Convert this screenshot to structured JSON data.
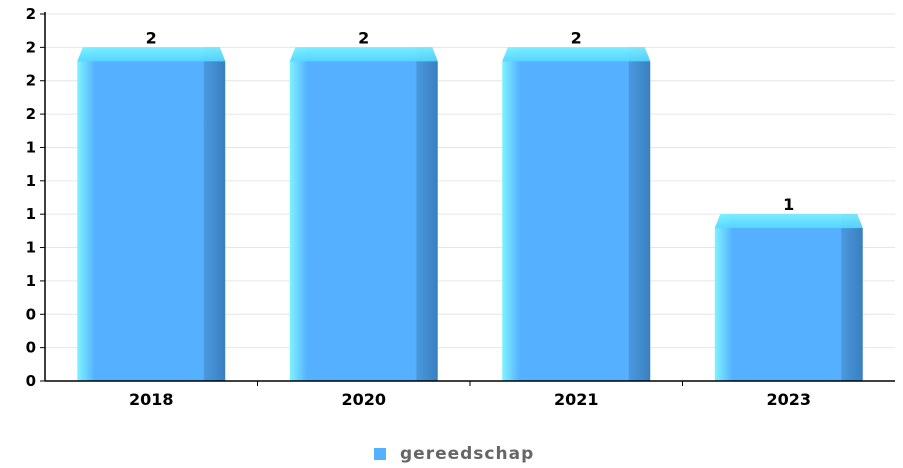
{
  "chart_data": {
    "type": "bar",
    "categories": [
      "2018",
      "2020",
      "2021",
      "2023"
    ],
    "series": [
      {
        "name": "gereedschap",
        "values": [
          2,
          2,
          2,
          1
        ]
      }
    ],
    "data_labels": [
      "2",
      "2",
      "2",
      "1"
    ],
    "y_tick_labels": [
      "0",
      "0",
      "0",
      "1",
      "1",
      "1",
      "1",
      "1",
      "2",
      "2",
      "2",
      "2"
    ],
    "ylim": [
      0,
      2.2
    ],
    "grid": true,
    "legend_position": "bottom-center",
    "colors": {
      "bar_face": "#55b0ff",
      "bar_highlight": "#7ff3ff",
      "bar_shadow": "#3a7fc0",
      "grid": "#e6e6e6",
      "axis": "#000000",
      "legend_label": "#666666"
    }
  }
}
